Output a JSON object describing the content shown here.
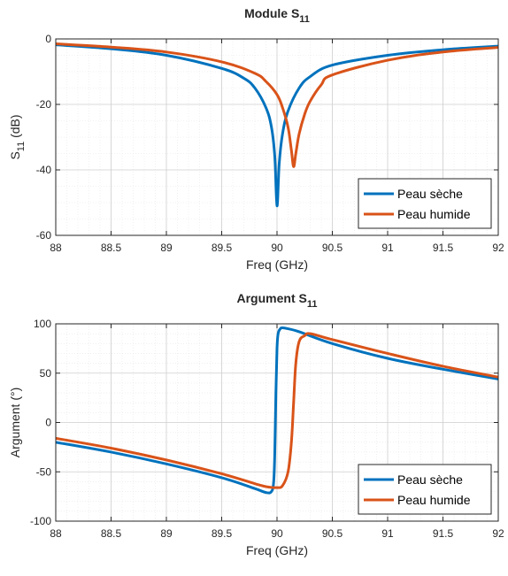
{
  "chart_data": [
    {
      "type": "line",
      "title": "Module S",
      "title_sub": "11",
      "xlabel": "Freq (GHz)",
      "ylabel": "S",
      "ylabel_sub": "11",
      "ylabel_unit": " (dB)",
      "xlim": [
        88,
        92
      ],
      "ylim": [
        -60,
        0
      ],
      "xticks": [
        "88",
        "88.5",
        "89",
        "89.5",
        "90",
        "90.5",
        "91",
        "91.5",
        "92"
      ],
      "yticks": [
        "0",
        "-20",
        "-40",
        "-60"
      ],
      "grid": true,
      "minor_grid": true,
      "legend_position": "bottom-right",
      "series": [
        {
          "name": "Peau sèche",
          "color": "#0072BD",
          "x": [
            88,
            88.5,
            89,
            89.5,
            89.7,
            89.8,
            89.9,
            89.95,
            89.98,
            90,
            90.02,
            90.05,
            90.1,
            90.2,
            90.3,
            90.5,
            91,
            91.5,
            92
          ],
          "y": [
            -1.8,
            -3,
            -5,
            -9,
            -12,
            -15,
            -21,
            -27,
            -36,
            -51,
            -38,
            -29,
            -22,
            -15,
            -11.5,
            -8,
            -5,
            -3.3,
            -2.2
          ]
        },
        {
          "name": "Peau humide",
          "color": "#D95319",
          "x": [
            88,
            88.5,
            89,
            89.5,
            89.8,
            89.9,
            90,
            90.05,
            90.1,
            90.13,
            90.15,
            90.17,
            90.2,
            90.25,
            90.3,
            90.4,
            90.5,
            91,
            91.5,
            92
          ],
          "y": [
            -1.5,
            -2.5,
            -4,
            -7,
            -10.5,
            -13,
            -17,
            -21,
            -27,
            -34,
            -39,
            -35,
            -29,
            -23,
            -19,
            -14,
            -11,
            -6.5,
            -4,
            -2.6
          ]
        }
      ]
    },
    {
      "type": "line",
      "title": "Argument S",
      "title_sub": "11",
      "xlabel": "Freq (GHz)",
      "ylabel": "Argument (°)",
      "xlim": [
        88,
        92
      ],
      "ylim": [
        -100,
        100
      ],
      "xticks": [
        "88",
        "88.5",
        "89",
        "89.5",
        "90",
        "90.5",
        "91",
        "91.5",
        "92"
      ],
      "yticks": [
        "100",
        "50",
        "0",
        "-50",
        "-100"
      ],
      "grid": true,
      "minor_grid": true,
      "legend_position": "bottom-right",
      "series": [
        {
          "name": "Peau sèche",
          "color": "#0072BD",
          "x": [
            88,
            88.5,
            89,
            89.5,
            89.8,
            89.9,
            89.95,
            89.97,
            89.98,
            89.99,
            90,
            90.01,
            90.03,
            90.05,
            90.1,
            90.2,
            90.5,
            91,
            91.5,
            92
          ],
          "y": [
            -20,
            -30,
            -42,
            -56,
            -67,
            -71,
            -70,
            -60,
            -30,
            30,
            75,
            90,
            95,
            96,
            95,
            92,
            80,
            65,
            54,
            44
          ],
          "interp": "linear"
        },
        {
          "name": "Peau humide",
          "color": "#D95319",
          "x": [
            88,
            88.5,
            89,
            89.5,
            89.8,
            89.9,
            90,
            90.05,
            90.1,
            90.13,
            90.15,
            90.17,
            90.2,
            90.25,
            90.3,
            90.5,
            91,
            91.5,
            92
          ],
          "y": [
            -16,
            -26,
            -38,
            -52,
            -62,
            -65,
            -66,
            -64,
            -50,
            -20,
            20,
            60,
            82,
            88,
            90,
            84,
            70,
            57,
            46
          ]
        }
      ]
    }
  ]
}
